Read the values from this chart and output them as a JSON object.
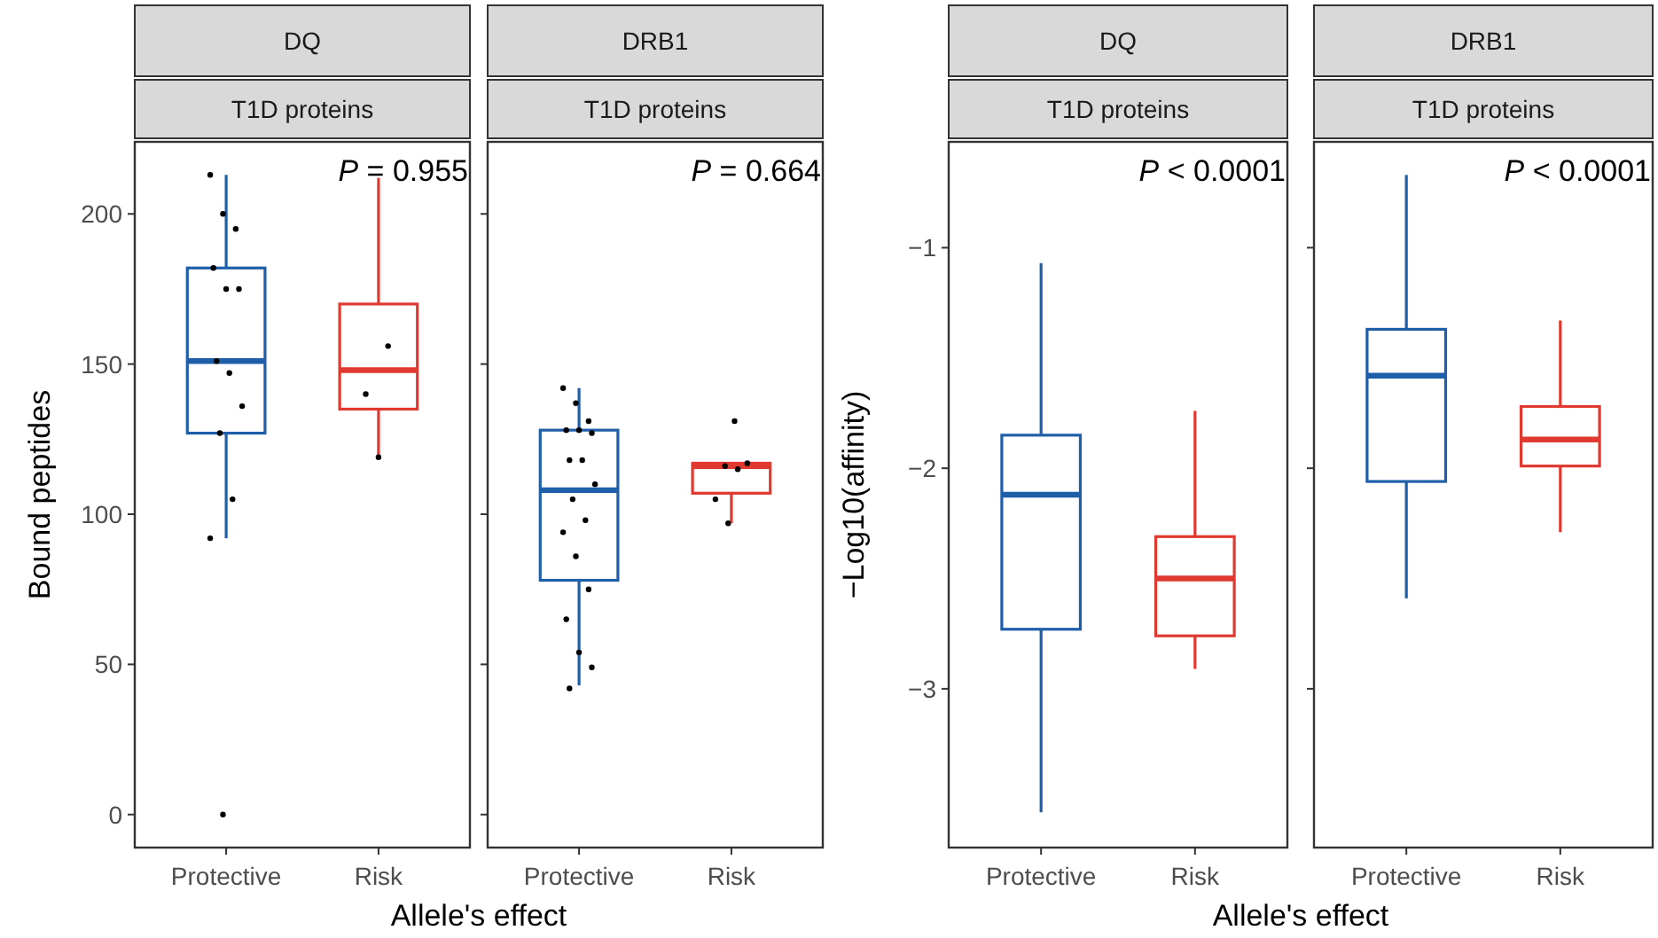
{
  "chart_data": [
    {
      "type": "box",
      "title": "DQ",
      "subtitle": "T1D proteins",
      "ylabel": "Bound peptides",
      "xlabel": "Allele's effect",
      "categories": [
        "Protective",
        "Risk"
      ],
      "colors": [
        "#1f5ea8",
        "#e0392f"
      ],
      "ylim": [
        -11,
        224
      ],
      "yticks": [
        0,
        50,
        100,
        150,
        200
      ],
      "grid": false,
      "annotations": [
        "P = 0.955"
      ],
      "boxes": [
        {
          "low": 92,
          "q1": 127,
          "median": 151,
          "q3": 182,
          "high": 213
        },
        {
          "low": 119,
          "q1": 135,
          "median": 148,
          "q3": 170,
          "high": 212
        }
      ],
      "series": [
        {
          "type": "scatter",
          "color": "#000000",
          "x": [
            "Protective",
            "Protective",
            "Protective",
            "Protective",
            "Protective",
            "Protective",
            "Protective",
            "Protective",
            "Protective",
            "Protective",
            "Protective",
            "Protective",
            "Protective",
            "Risk",
            "Risk",
            "Risk"
          ],
          "values": [
            213,
            200,
            195,
            182,
            175,
            175,
            151,
            147,
            136,
            127,
            105,
            92,
            0,
            156,
            140,
            119
          ]
        }
      ]
    },
    {
      "type": "box",
      "title": "DRB1",
      "subtitle": "T1D proteins",
      "categories": [
        "Protective",
        "Risk"
      ],
      "colors": [
        "#1f5ea8",
        "#e0392f"
      ],
      "ylim": [
        -11,
        224
      ],
      "yticks": [
        0,
        50,
        100,
        150,
        200
      ],
      "tick_labels": "x",
      "grid": false,
      "annotations": [
        "P = 0.664"
      ],
      "boxes": [
        {
          "low": 43,
          "q1": 78,
          "median": 108,
          "q3": 128,
          "high": 142
        },
        {
          "low": 97,
          "q1": 107,
          "median": 116,
          "q3": 117,
          "high": 117
        }
      ],
      "series": [
        {
          "type": "scatter",
          "color": "#000000",
          "x": [
            "Protective",
            "Protective",
            "Protective",
            "Protective",
            "Protective",
            "Protective",
            "Protective",
            "Protective",
            "Protective",
            "Protective",
            "Protective",
            "Protective",
            "Protective",
            "Protective",
            "Protective",
            "Protective",
            "Protective",
            "Protective",
            "Risk",
            "Risk",
            "Risk",
            "Risk",
            "Risk",
            "Risk"
          ],
          "values": [
            142,
            137,
            131,
            128,
            128,
            127,
            118,
            118,
            110,
            105,
            98,
            94,
            86,
            75,
            65,
            54,
            49,
            42,
            131,
            117,
            116,
            115,
            105,
            97
          ]
        }
      ]
    },
    {
      "type": "box",
      "title": "DQ",
      "subtitle": "T1D proteins",
      "ylabel": "−Log10(affinity)",
      "xlabel": "Allele's effect",
      "categories": [
        "Protective",
        "Risk"
      ],
      "colors": [
        "#1f5ea8",
        "#e0392f"
      ],
      "ylim": [
        -3.72,
        -0.52
      ],
      "yticks": [
        {
          "value": -3,
          "label": "−3"
        },
        {
          "value": -2,
          "label": "−2"
        },
        {
          "value": -1,
          "label": "−1"
        }
      ],
      "grid": false,
      "annotations": [
        "P < 0.0001"
      ],
      "boxes": [
        {
          "low": -3.56,
          "q1": -2.73,
          "median": -2.12,
          "q3": -1.85,
          "high": -1.07
        },
        {
          "low": -2.91,
          "q1": -2.76,
          "median": -2.5,
          "q3": -2.31,
          "high": -1.74
        }
      ]
    },
    {
      "type": "box",
      "title": "DRB1",
      "subtitle": "T1D proteins",
      "categories": [
        "Protective",
        "Risk"
      ],
      "colors": [
        "#1f5ea8",
        "#e0392f"
      ],
      "ylim": [
        -3.72,
        -0.52
      ],
      "yticks": [
        -3,
        -2,
        -1
      ],
      "tick_labels": "x",
      "grid": false,
      "annotations": [
        "P < 0.0001"
      ],
      "boxes": [
        {
          "low": -2.59,
          "q1": -2.06,
          "median": -1.58,
          "q3": -1.37,
          "high": -0.67
        },
        {
          "low": -2.29,
          "q1": -1.99,
          "median": -1.87,
          "q3": -1.72,
          "high": -1.33
        }
      ]
    }
  ]
}
